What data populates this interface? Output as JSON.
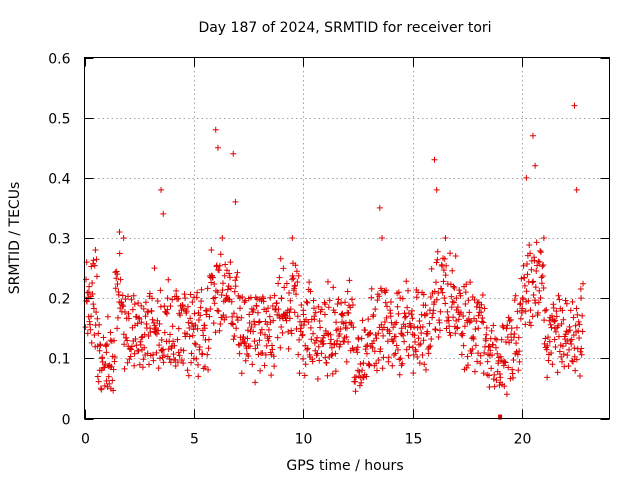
{
  "chart_data": {
    "type": "scatter",
    "title": "Day 187 of 2024, SRMTID for receiver tori",
    "xlabel": "GPS time / hours",
    "ylabel": "SRMTID / TECUs",
    "xlim": [
      0,
      24
    ],
    "ylim": [
      0,
      0.6
    ],
    "x_ticks": [
      0,
      5,
      10,
      15,
      20
    ],
    "x_tick_labels": [
      "0",
      "5",
      "10",
      "15",
      "20"
    ],
    "y_ticks": [
      0,
      0.1,
      0.2,
      0.3,
      0.4,
      0.5,
      0.6
    ],
    "y_tick_labels": [
      "0",
      "0.1",
      "0.2",
      "0.3",
      "0.4",
      "0.5",
      "0.6"
    ],
    "grid": true,
    "marker": "+",
    "color": "#e00000",
    "series": [
      {
        "name": "SRMTID",
        "description": "Approximately 2800 points, ~1 every 30 s across 0-22.8 h; plotted as a cloud centred near 0.15 TECU with spikes up to 0.52 TECU",
        "points": [
          [
            0.1,
            0.26
          ],
          [
            0.2,
            0.21
          ],
          [
            0.3,
            0.17
          ],
          [
            0.4,
            0.19
          ],
          [
            0.5,
            0.28
          ],
          [
            0.6,
            0.12
          ],
          [
            0.7,
            0.08
          ],
          [
            0.8,
            0.1
          ],
          [
            1.0,
            0.11
          ],
          [
            1.2,
            0.13
          ],
          [
            1.5,
            0.24
          ],
          [
            1.6,
            0.31
          ],
          [
            1.8,
            0.14
          ],
          [
            2.0,
            0.12
          ],
          [
            2.3,
            0.19
          ],
          [
            2.6,
            0.16
          ],
          [
            3.0,
            0.15
          ],
          [
            3.2,
            0.25
          ],
          [
            3.5,
            0.38
          ],
          [
            3.6,
            0.34
          ],
          [
            3.8,
            0.2
          ],
          [
            4.0,
            0.12
          ],
          [
            4.3,
            0.11
          ],
          [
            4.6,
            0.2
          ],
          [
            5.0,
            0.1
          ],
          [
            5.2,
            0.07
          ],
          [
            5.5,
            0.15
          ],
          [
            5.8,
            0.28
          ],
          [
            6.0,
            0.48
          ],
          [
            6.1,
            0.45
          ],
          [
            6.3,
            0.3
          ],
          [
            6.5,
            0.2
          ],
          [
            6.8,
            0.44
          ],
          [
            6.9,
            0.36
          ],
          [
            7.1,
            0.2
          ],
          [
            7.5,
            0.12
          ],
          [
            7.8,
            0.06
          ],
          [
            8.0,
            0.13
          ],
          [
            8.5,
            0.16
          ],
          [
            9.0,
            0.2
          ],
          [
            9.5,
            0.3
          ],
          [
            9.6,
            0.22
          ],
          [
            10.0,
            0.18
          ],
          [
            10.5,
            0.17
          ],
          [
            11.0,
            0.19
          ],
          [
            11.5,
            0.16
          ],
          [
            12.0,
            0.15
          ],
          [
            12.5,
            0.08
          ],
          [
            13.0,
            0.14
          ],
          [
            13.5,
            0.35
          ],
          [
            13.6,
            0.3
          ],
          [
            14.0,
            0.17
          ],
          [
            14.5,
            0.15
          ],
          [
            15.0,
            0.14
          ],
          [
            15.5,
            0.13
          ],
          [
            16.0,
            0.43
          ],
          [
            16.1,
            0.38
          ],
          [
            16.5,
            0.3
          ],
          [
            17.0,
            0.2
          ],
          [
            17.5,
            0.16
          ],
          [
            18.0,
            0.15
          ],
          [
            18.5,
            0.12
          ],
          [
            19.0,
            0.06
          ],
          [
            19.5,
            0.14
          ],
          [
            20.0,
            0.18
          ],
          [
            20.2,
            0.4
          ],
          [
            20.5,
            0.47
          ],
          [
            20.6,
            0.42
          ],
          [
            21.0,
            0.3
          ],
          [
            21.5,
            0.15
          ],
          [
            22.0,
            0.14
          ],
          [
            22.4,
            0.52
          ],
          [
            22.5,
            0.38
          ],
          [
            22.7,
            0.2
          ],
          [
            19.0,
            0.0
          ]
        ]
      }
    ]
  }
}
